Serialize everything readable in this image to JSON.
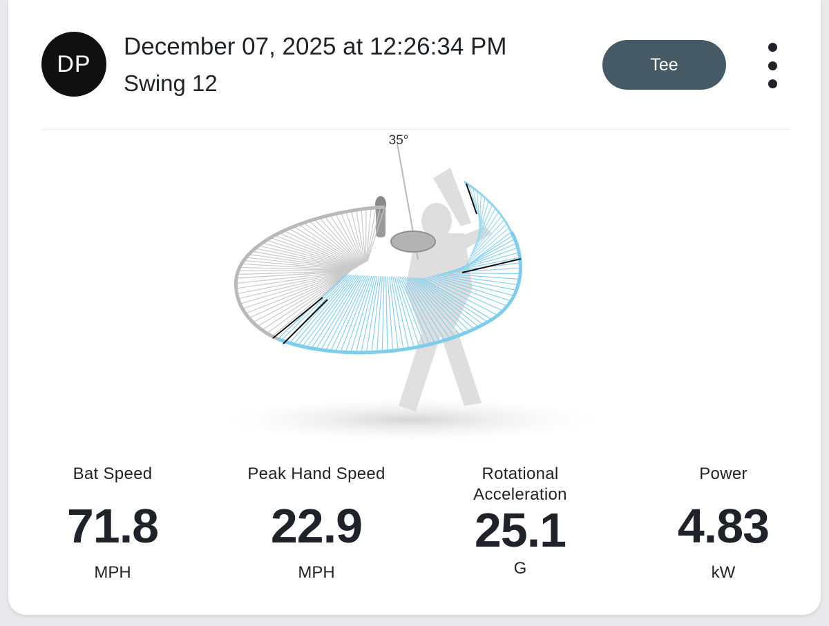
{
  "header": {
    "avatar_initials": "DP",
    "datetime": "December 07, 2025 at 12:26:34 PM",
    "swing_label": "Swing 12",
    "tee_button_label": "Tee",
    "more_icon": "more-vertical-icon"
  },
  "visualization": {
    "angle_label": "35°"
  },
  "metrics": [
    {
      "label_line1": "Bat Speed",
      "label_line2": "",
      "value": "71.8",
      "unit": "MPH"
    },
    {
      "label_line1": "Peak Hand Speed",
      "label_line2": "",
      "value": "22.9",
      "unit": "MPH"
    },
    {
      "label_line1": "Rotational",
      "label_line2": "Acceleration",
      "value": "25.1",
      "unit": "G"
    },
    {
      "label_line1": "Power",
      "label_line2": "",
      "value": "4.83",
      "unit": "kW"
    }
  ],
  "colors": {
    "avatar_bg": "#101010",
    "button_bg": "#455a65",
    "swing_path_blue": "#6cc4ea",
    "swing_path_gray": "#bdbdbd"
  }
}
